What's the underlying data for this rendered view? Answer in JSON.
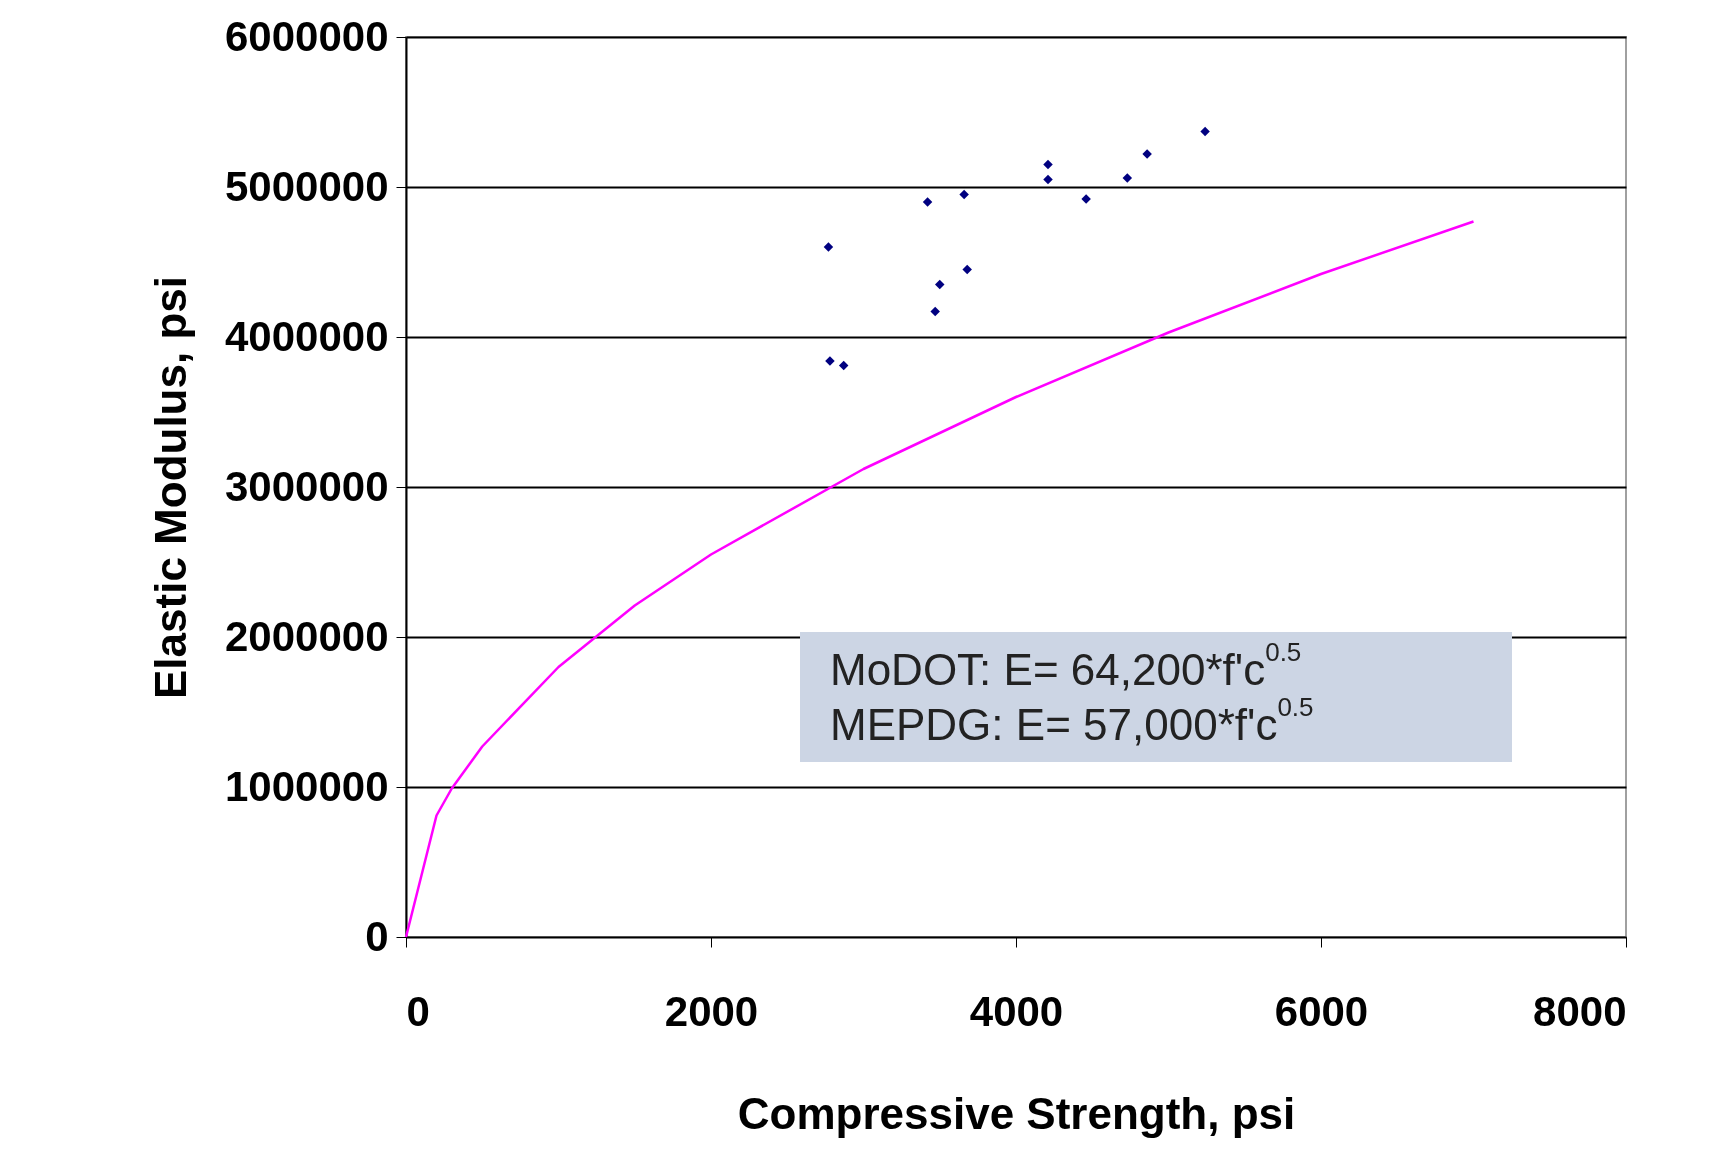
{
  "chart_data": {
    "type": "scatter",
    "xlabel": "Compressive Strength, psi",
    "ylabel": "Elastic Modulus, psi",
    "annotations": [
      "MoDOT: E= 64,200*f'c$^{0.5}$\nMEPDG: E= 57,000*f'c$^{0.5}$"
    ],
    "xlim": [
      0,
      8000
    ],
    "xticks": [
      0,
      2000,
      4000,
      6000,
      8000
    ],
    "ylim": [
      0,
      6000000
    ],
    "yticks": [
      0,
      1000000,
      2000000,
      3000000,
      4000000,
      5000000,
      6000000
    ],
    "grid": "y",
    "series": [
      {
        "color": "#000080",
        "marker": "diamond",
        "x": [
          2770,
          2780,
          2870,
          3420,
          3660,
          3500,
          3680,
          3470,
          4210,
          4210,
          4460,
          4730,
          4860,
          5240
        ],
        "values": [
          4600000,
          3840000,
          3810000,
          4900000,
          4950000,
          4350000,
          4450000,
          4170000,
          5150000,
          5050000,
          4920000,
          5060000,
          5220000,
          5370000
        ]
      },
      {
        "type": "line",
        "color": "#ff00ff",
        "line_style": "solid",
        "x": [
          0,
          200,
          300,
          500,
          1000,
          1500,
          2000,
          3000,
          4000,
          5000,
          6000,
          7000
        ],
        "values": [
          0,
          810000,
          990000,
          1270000,
          1800000,
          2210000,
          2550000,
          3120000,
          3600000,
          4030000,
          4420000,
          4770000
        ]
      }
    ]
  }
}
